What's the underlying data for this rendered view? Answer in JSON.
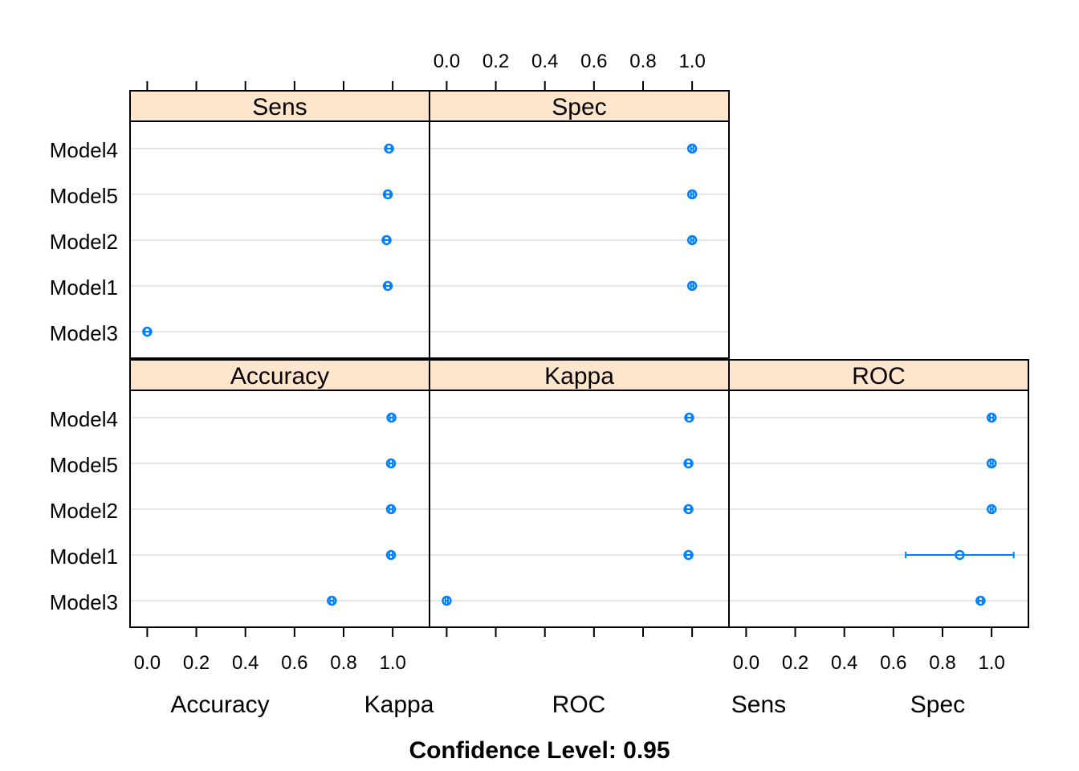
{
  "chart_data": {
    "type": "dotplot",
    "title": "",
    "models": [
      "Model4",
      "Model5",
      "Model2",
      "Model1",
      "Model3"
    ],
    "xlim": [
      -0.07,
      1.15
    ],
    "ticks": [
      0.0,
      0.2,
      0.4,
      0.6,
      0.8,
      1.0
    ],
    "tick_labels": [
      "0.0",
      "0.2",
      "0.4",
      "0.6",
      "0.8",
      "1.0"
    ],
    "panels": [
      {
        "metric": "Sens",
        "strip": "Sens",
        "estimates": [
          0.985,
          0.98,
          0.975,
          0.98,
          0.0
        ],
        "lower": [
          0.975,
          0.97,
          0.965,
          0.97,
          -0.01
        ],
        "upper": [
          0.995,
          0.99,
          0.985,
          0.99,
          0.01
        ]
      },
      {
        "metric": "Spec",
        "strip": "Spec",
        "estimates": [
          1.0,
          1.0,
          1.0,
          1.0,
          null
        ],
        "lower": [
          0.995,
          0.995,
          0.995,
          0.995,
          null
        ],
        "upper": [
          1.005,
          1.005,
          1.005,
          1.005,
          null
        ]
      },
      {
        "metric": "Accuracy",
        "strip": "Accuracy",
        "estimates": [
          0.995,
          0.993,
          0.993,
          0.993,
          0.752
        ],
        "lower": [
          0.988,
          0.986,
          0.986,
          0.986,
          0.745
        ],
        "upper": [
          1.002,
          1.0,
          1.0,
          1.0,
          0.759
        ]
      },
      {
        "metric": "Kappa",
        "strip": "Kappa",
        "estimates": [
          0.988,
          0.985,
          0.985,
          0.985,
          0.0
        ],
        "lower": [
          0.978,
          0.975,
          0.975,
          0.975,
          -0.005
        ],
        "upper": [
          0.998,
          0.995,
          0.995,
          0.995,
          0.005
        ]
      },
      {
        "metric": "ROC",
        "strip": "ROC",
        "estimates": [
          1.0,
          1.0,
          1.0,
          0.87,
          0.955
        ],
        "lower": [
          0.993,
          0.995,
          0.995,
          0.65,
          0.947
        ],
        "upper": [
          1.007,
          1.005,
          1.005,
          1.09,
          0.963
        ]
      }
    ],
    "bottom_labels": [
      "Accuracy",
      "Kappa",
      "ROC",
      "Sens",
      "Spec"
    ],
    "xlabel": "Confidence Level: 0.95",
    "point_color": "#0080ff",
    "strip_color": "#ffe5cc",
    "grid_color": "#e6e6e6",
    "grid": true,
    "legend": "none"
  }
}
